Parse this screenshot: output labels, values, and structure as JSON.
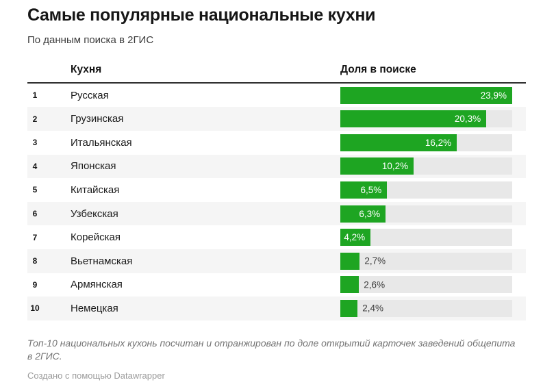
{
  "header": {
    "title": "Самые популярные национальные кухни",
    "subtitle": "По данным поиска в 2ГИС"
  },
  "table": {
    "columns": {
      "cuisine": "Кухня",
      "share": "Доля в поиске"
    },
    "rows": [
      {
        "rank": "1",
        "name": "Русская",
        "value": 23.9,
        "label": "23,9%"
      },
      {
        "rank": "2",
        "name": "Грузинская",
        "value": 20.3,
        "label": "20,3%"
      },
      {
        "rank": "3",
        "name": "Итальянская",
        "value": 16.2,
        "label": "16,2%"
      },
      {
        "rank": "4",
        "name": "Японская",
        "value": 10.2,
        "label": "10,2%"
      },
      {
        "rank": "5",
        "name": "Китайская",
        "value": 6.5,
        "label": "6,5%"
      },
      {
        "rank": "6",
        "name": "Узбекская",
        "value": 6.3,
        "label": "6,3%"
      },
      {
        "rank": "7",
        "name": "Корейская",
        "value": 4.2,
        "label": "4,2%"
      },
      {
        "rank": "8",
        "name": "Вьетнамская",
        "value": 2.7,
        "label": "2,7%"
      },
      {
        "rank": "9",
        "name": "Армянская",
        "value": 2.6,
        "label": "2,6%"
      },
      {
        "rank": "10",
        "name": "Немецкая",
        "value": 2.4,
        "label": "2,4%"
      }
    ]
  },
  "footer": {
    "note": "Топ-10 национальных кухонь посчитан и отранжирован по доле открытий карточек заведений общепита в 2ГИС.",
    "attribution_prefix": "Создано с помощью ",
    "attribution_link": "Datawrapper"
  },
  "colors": {
    "bar": "#1ea522",
    "bar_track": "#e8e8e8",
    "zebra_row": "#f5f5f5",
    "header_rule": "#2e2e2e"
  },
  "chart_data": {
    "type": "bar",
    "orientation": "horizontal",
    "title": "Самые популярные национальные кухни",
    "subtitle": "По данным поиска в 2ГИС",
    "category_column_label": "Кухня",
    "value_column_label": "Доля в поиске",
    "categories": [
      "Русская",
      "Грузинская",
      "Итальянская",
      "Японская",
      "Китайская",
      "Узбекская",
      "Корейская",
      "Вьетнамская",
      "Армянская",
      "Немецкая"
    ],
    "values": [
      23.9,
      20.3,
      16.2,
      10.2,
      6.5,
      6.3,
      4.2,
      2.7,
      2.6,
      2.4
    ],
    "value_labels": [
      "23,9%",
      "20,3%",
      "16,2%",
      "10,2%",
      "6,5%",
      "6,3%",
      "4,2%",
      "2,7%",
      "2,6%",
      "2,4%"
    ],
    "unit": "%",
    "xlim": [
      0,
      23.9
    ],
    "grid": false,
    "legend": "none",
    "note": "Топ-10 национальных кухонь посчитан и отранжирован по доле открытий карточек заведений общепита в 2ГИС.",
    "attribution": "Создано с помощью Datawrapper"
  }
}
